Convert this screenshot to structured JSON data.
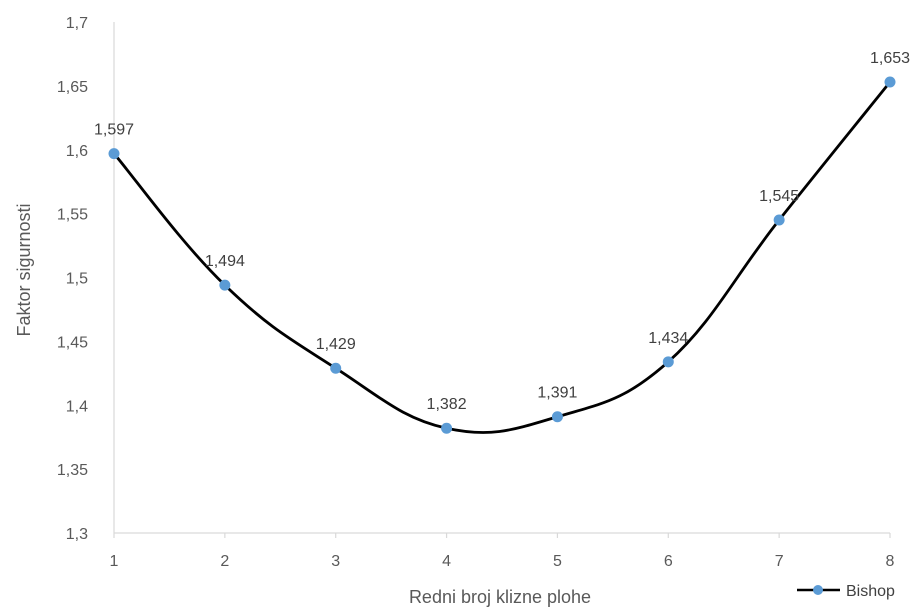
{
  "chart_data": {
    "type": "line",
    "title": "",
    "xlabel": "Redni broj klizne plohe",
    "ylabel": "Faktor sigurnosti",
    "x": [
      1,
      2,
      3,
      4,
      5,
      6,
      7,
      8
    ],
    "x_tick_labels": [
      "1",
      "2",
      "3",
      "4",
      "5",
      "6",
      "7",
      "8"
    ],
    "ylim": [
      1.3,
      1.7
    ],
    "y_ticks": [
      1.3,
      1.35,
      1.4,
      1.45,
      1.5,
      1.55,
      1.6,
      1.65,
      1.7
    ],
    "y_tick_labels": [
      "1,3",
      "1,35",
      "1,4",
      "1,45",
      "1,5",
      "1,55",
      "1,6",
      "1,65",
      "1,7"
    ],
    "grid": false,
    "smooth": true,
    "legend_position": "bottom-right",
    "series": [
      {
        "name": "Bishop",
        "values": [
          1.597,
          1.494,
          1.429,
          1.382,
          1.391,
          1.434,
          1.545,
          1.653
        ],
        "data_labels": [
          "1,597",
          "1,494",
          "1,429",
          "1,382",
          "1,391",
          "1,434",
          "1,545",
          "1,653"
        ],
        "line_color": "#000000",
        "marker_color": "#5B9BD5"
      }
    ],
    "axis_color": "#D9D9D9"
  }
}
